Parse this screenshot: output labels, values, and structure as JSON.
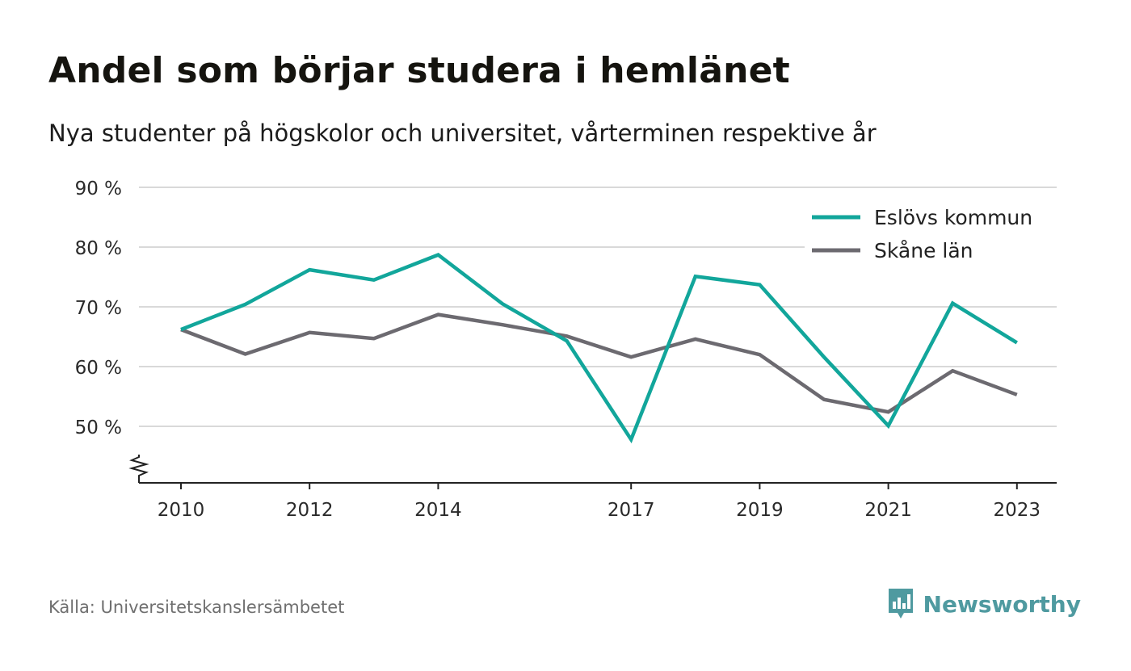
{
  "title": "Andel som börjar studera i hemlänet",
  "subtitle": "Nya studenter på högskolor och universitet, vårterminen respektive år",
  "source": "Källa: Universitetskanslersämbetet",
  "brand": {
    "name": "Newsworthy",
    "icon": "newsworthy-logo-icon"
  },
  "colors": {
    "eslov": "#12a69b",
    "skane": "#6c6a70",
    "grid": "#d9d9d9",
    "axis": "#222222",
    "brand": "#4f9aa0"
  },
  "chart_data": {
    "type": "line",
    "x": [
      2010,
      2011,
      2012,
      2013,
      2014,
      2015,
      2016,
      2017,
      2018,
      2019,
      2020,
      2021,
      2022,
      2023
    ],
    "x_tick_labels": [
      "2010",
      "2012",
      "2014",
      "2017",
      "2019",
      "2021",
      "2023"
    ],
    "x_tick_values": [
      2010,
      2012,
      2014,
      2017,
      2019,
      2021,
      2023
    ],
    "y_ticks": [
      50,
      60,
      70,
      80,
      90
    ],
    "y_tick_labels": [
      "50 %",
      "60 %",
      "70 %",
      "80 %",
      "90 %"
    ],
    "ylim": [
      40,
      90
    ],
    "y_axis_break": true,
    "grid": true,
    "legend_position": "top-right",
    "series": [
      {
        "name": "Eslövs kommun",
        "color": "#12a69b",
        "values": [
          66.2,
          70.4,
          76.2,
          74.5,
          78.7,
          70.5,
          64.3,
          47.8,
          75.1,
          73.7,
          61.6,
          50.1,
          70.6,
          64.0
        ]
      },
      {
        "name": "Skåne län",
        "color": "#6c6a70",
        "values": [
          66.2,
          62.1,
          65.7,
          64.7,
          68.7,
          67.0,
          65.1,
          61.6,
          64.6,
          62.0,
          54.5,
          52.4,
          59.3,
          55.3
        ]
      }
    ]
  }
}
